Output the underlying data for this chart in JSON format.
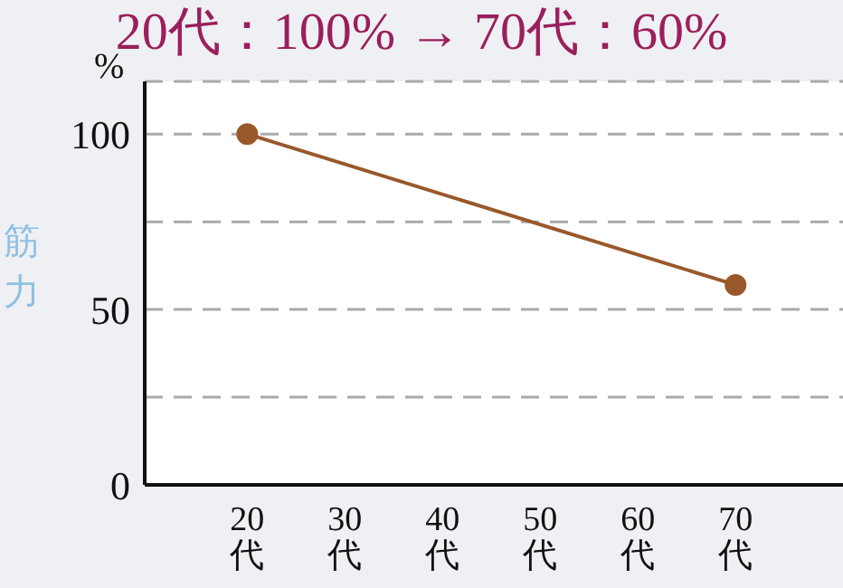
{
  "chart_data": {
    "type": "line",
    "title": "20代：100% → 70代：60%",
    "ylabel": "筋力",
    "annotations": [
      "%"
    ],
    "categories": [
      "20代",
      "30代",
      "40代",
      "50代",
      "60代",
      "70代"
    ],
    "series": [
      {
        "color": "#99582a",
        "values": [
          100,
          null,
          null,
          null,
          null,
          57
        ]
      }
    ],
    "ylim": [
      0,
      115
    ],
    "yticks": [
      0,
      {
        "value": 25,
        "label": null
      },
      50,
      {
        "value": 75,
        "label": null
      },
      100
    ],
    "grid": "y",
    "marker": "circle",
    "line_style": "solid"
  }
}
